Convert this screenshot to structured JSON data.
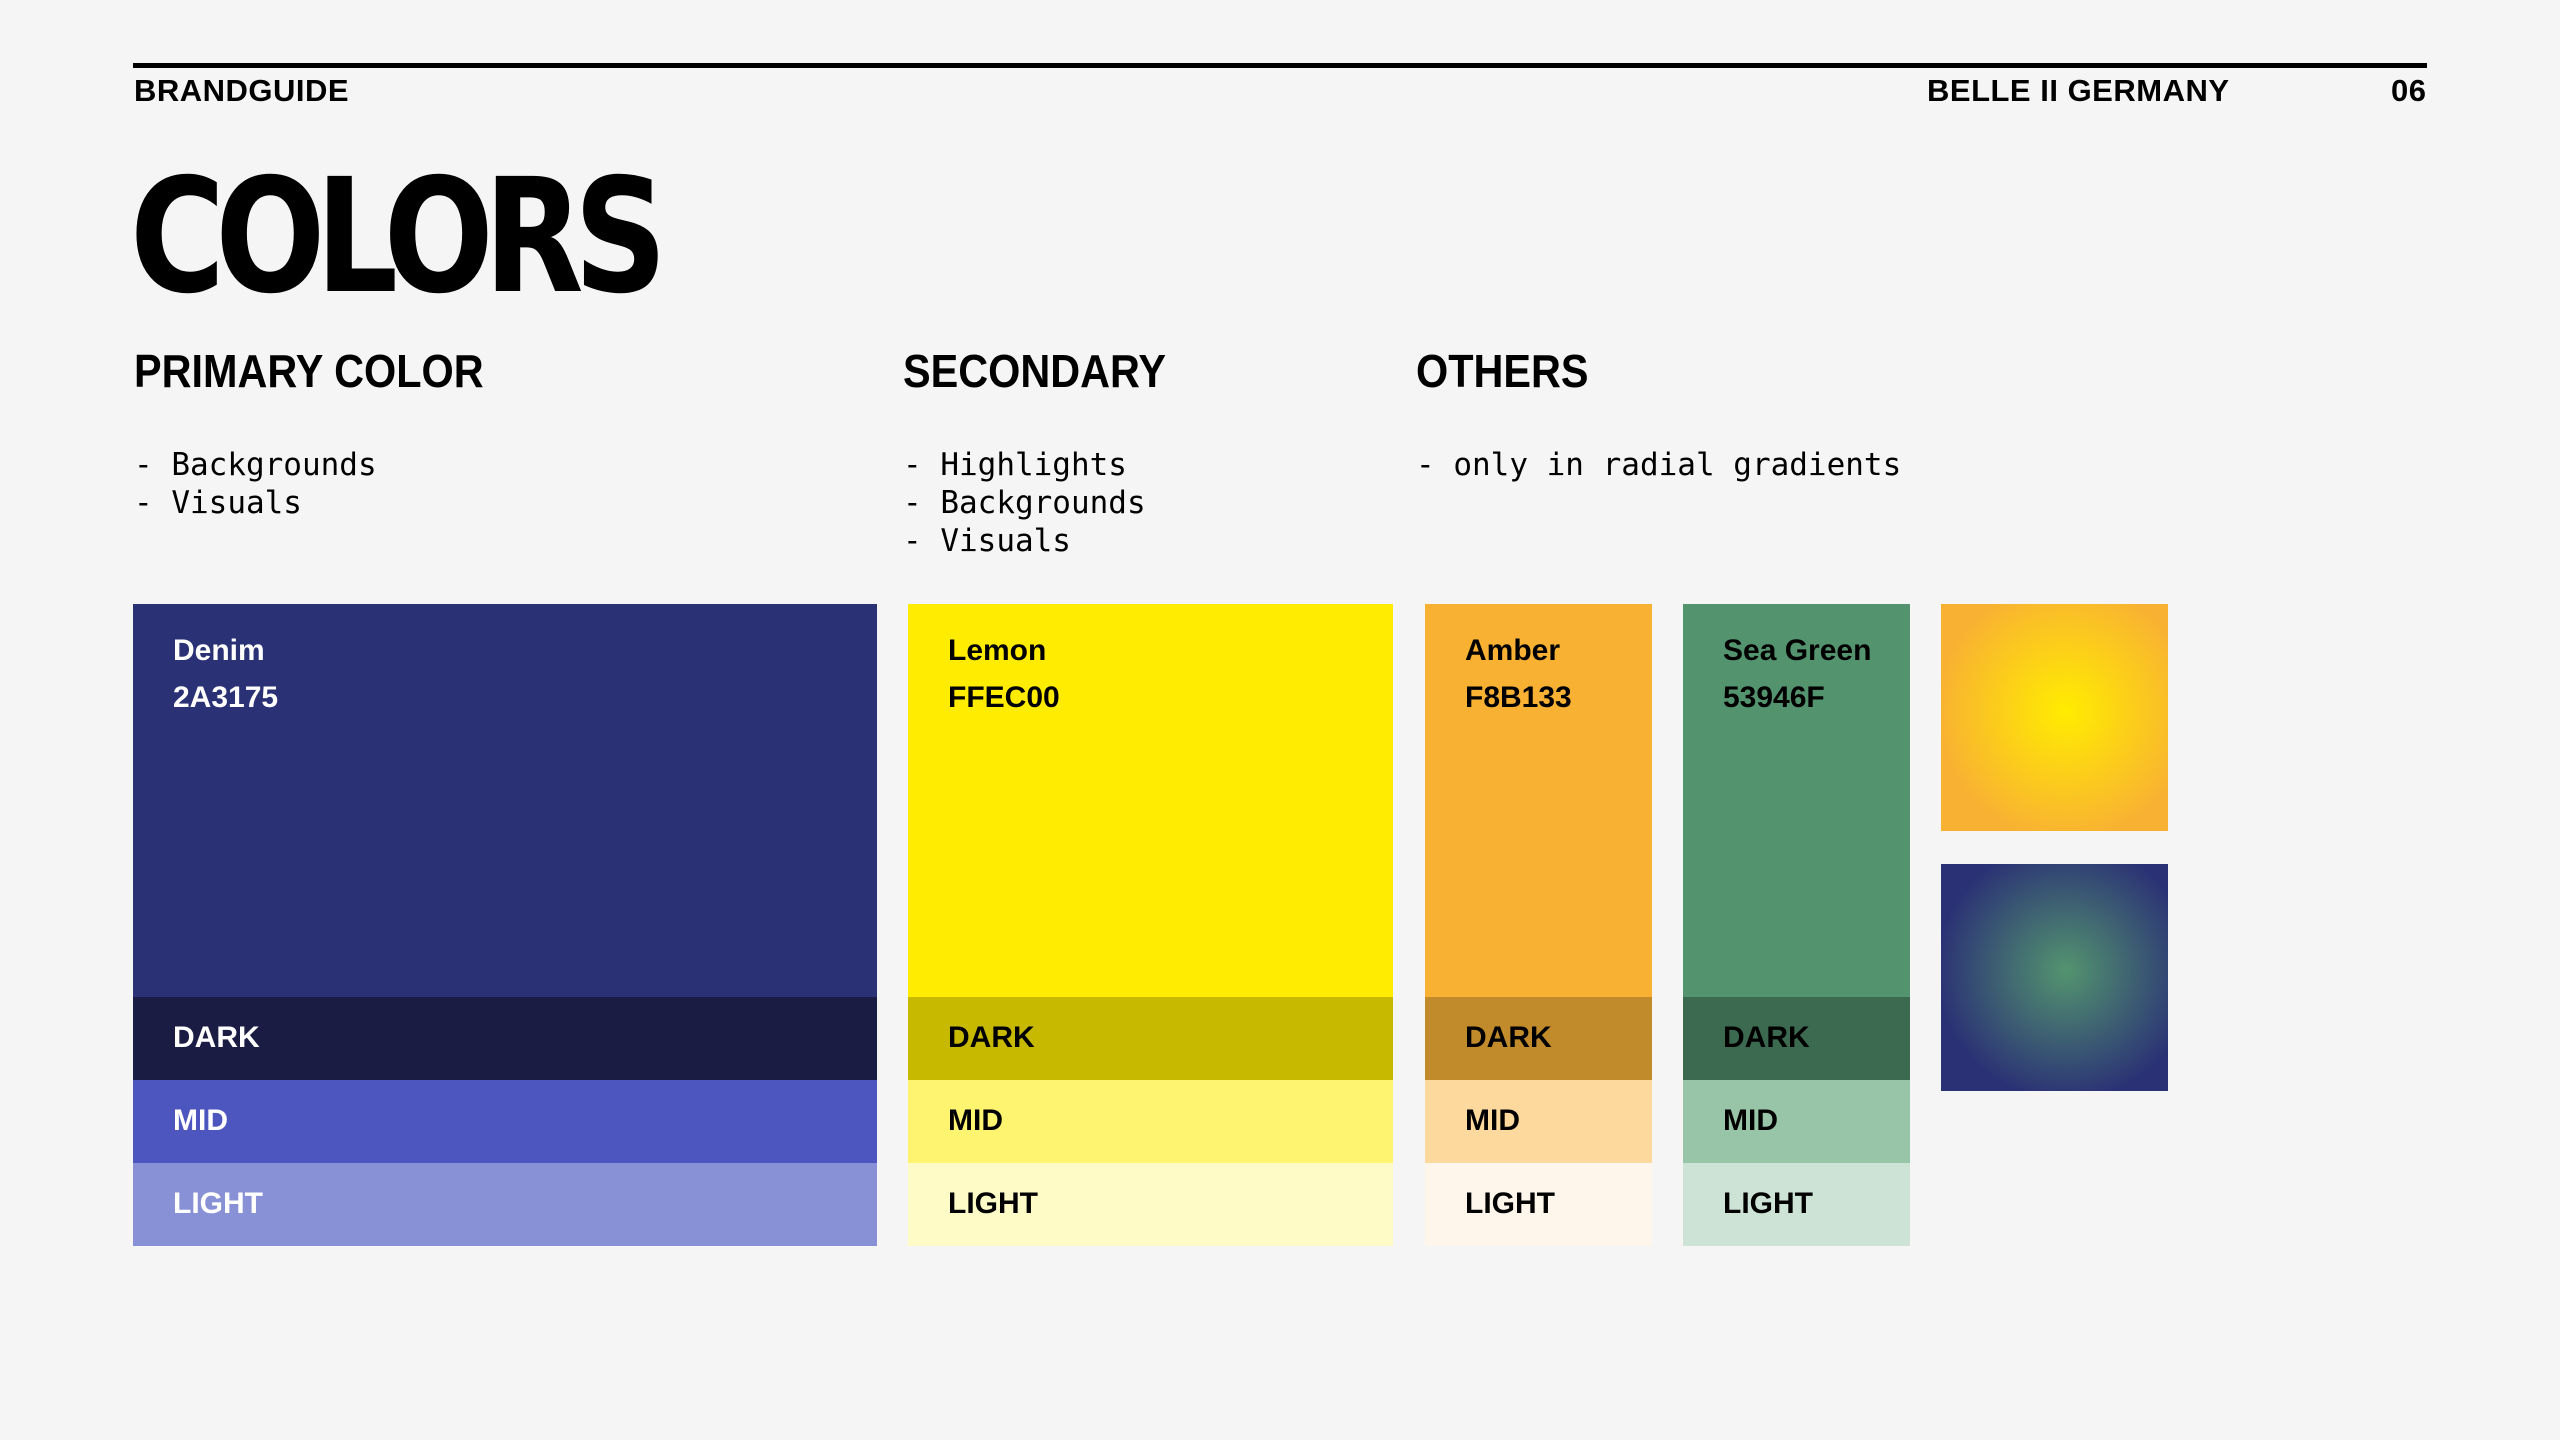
{
  "header": {
    "left": "BRANDGUIDE",
    "center": "BELLE II GERMANY",
    "page": "06"
  },
  "title": "COLORS",
  "sections": {
    "primary": {
      "title": "PRIMARY COLOR",
      "bullets": [
        "- Backgrounds",
        "- Visuals"
      ]
    },
    "secondary": {
      "title": "SECONDARY",
      "bullets": [
        "- Highlights",
        "- Backgrounds",
        "- Visuals"
      ]
    },
    "others": {
      "title": "OTHERS",
      "bullets": [
        "- only in radial gradients"
      ]
    }
  },
  "swatches": [
    {
      "name": "Denim",
      "hex": "2A3175",
      "color": "#2A3175",
      "dark": "#1A1C44",
      "mid": "#4D56BF",
      "light": "#8890D6",
      "dark_label": "DARK",
      "mid_label": "MID",
      "light_label": "LIGHT"
    },
    {
      "name": "Lemon",
      "hex": "FFEC00",
      "color": "#FFEC00",
      "dark": "#C7B800",
      "mid": "#FFF46F",
      "light": "#FFFBC7",
      "dark_label": "DARK",
      "mid_label": "MID",
      "light_label": "LIGHT"
    },
    {
      "name": "Amber",
      "hex": "F8B133",
      "color": "#F8B133",
      "dark": "#C18A2A",
      "mid": "#FDD99D",
      "light": "#FEF6EA",
      "dark_label": "DARK",
      "mid_label": "MID",
      "light_label": "LIGHT"
    },
    {
      "name": "Sea Green",
      "hex": "53946F",
      "color": "#53946F",
      "dark": "#3B6A50",
      "mid": "#98C5A8",
      "light": "#CDE3D5",
      "dark_label": "DARK",
      "mid_label": "MID",
      "light_label": "LIGHT"
    }
  ],
  "gradients": [
    {
      "center": "#FFEC00",
      "edge": "#F8B133"
    },
    {
      "center": "#53946F",
      "edge": "#2A3175"
    }
  ]
}
